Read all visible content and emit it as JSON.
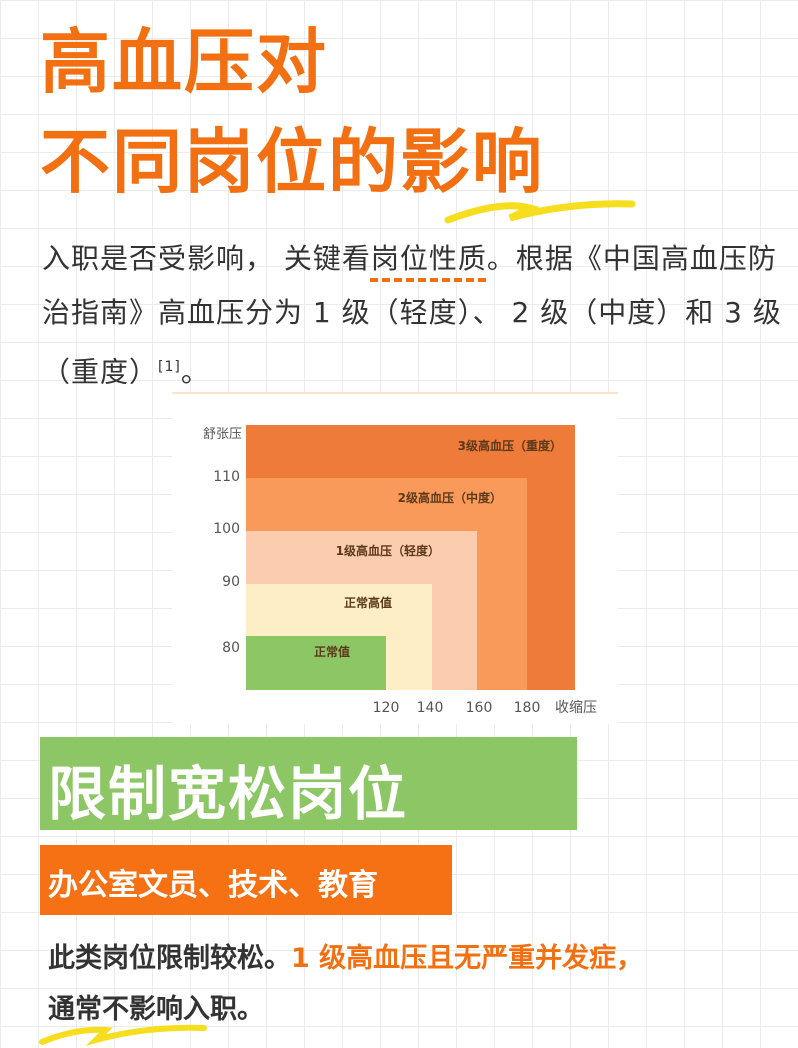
{
  "title": {
    "line1": "高血压对",
    "line2": "不同岗位的影响"
  },
  "intro": {
    "part1": "入职是否受影响， 关键看",
    "highlight": "岗位性质",
    "part2": "。根据《中国高血压防治指南》高血压分为 1 级（轻度）、 2 级（中度）和 3 级（重度）",
    "citation": "[1]",
    "end": "。"
  },
  "chart_data": {
    "type": "area",
    "ylabel": "舒张压",
    "xlabel": "收缩压",
    "x_ticks": [
      "120",
      "140",
      "160",
      "180"
    ],
    "y_ticks": [
      "110",
      "100",
      "90",
      "80"
    ],
    "regions": [
      {
        "name": "3级高血压（重度）",
        "x_upper": null,
        "y_upper": null,
        "color": "#ef7b3a"
      },
      {
        "name": "2级高血压（中度）",
        "x_upper": 180,
        "y_upper": 110,
        "color": "#fa9a5a"
      },
      {
        "name": "1级高血压（轻度）",
        "x_upper": 160,
        "y_upper": 100,
        "color": "#fcccae"
      },
      {
        "name": "正常高值",
        "x_upper": 140,
        "y_upper": 90,
        "color": "#fdeec6"
      },
      {
        "name": "正常值",
        "x_upper": 120,
        "y_upper": 80,
        "color": "#8dc664"
      }
    ]
  },
  "section": {
    "heading": "限制宽松岗位",
    "jobs": "办公室文员、技术、教育",
    "text1": "此类岗位限制较松。",
    "text_highlight": "1 级高血压且无严重并发症，",
    "text2": "通常不影响入职。"
  },
  "colors": {
    "accent": "#f37012",
    "green": "#8dc664",
    "text": "#333333"
  }
}
